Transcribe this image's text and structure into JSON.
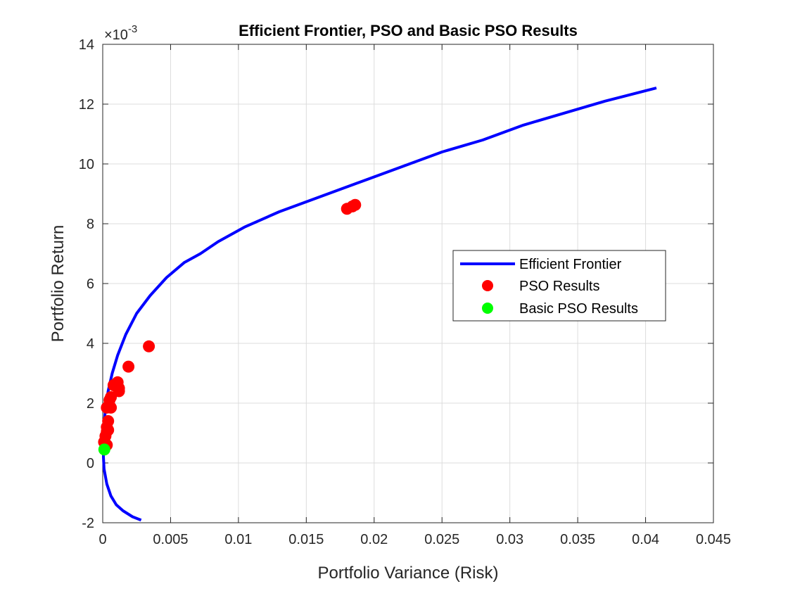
{
  "chart_data": {
    "type": "scatter",
    "title": "Efficient Frontier, PSO and Basic PSO Results",
    "xlabel": "Portfolio Variance (Risk)",
    "ylabel": "Portfolio Return",
    "xlim": [
      0,
      0.045
    ],
    "ylim": [
      -0.002,
      0.014
    ],
    "xticks": [
      0,
      0.005,
      0.01,
      0.015,
      0.02,
      0.025,
      0.03,
      0.035,
      0.04,
      0.045
    ],
    "xtick_labels": [
      "0",
      "0.005",
      "0.01",
      "0.015",
      "0.02",
      "0.025",
      "0.03",
      "0.035",
      "0.04",
      "0.045"
    ],
    "yticks": [
      -0.002,
      0,
      0.002,
      0.004,
      0.006,
      0.008,
      0.01,
      0.012,
      0.014
    ],
    "ytick_labels": [
      "-2",
      "0",
      "2",
      "4",
      "6",
      "8",
      "10",
      "12",
      "14"
    ],
    "y_exponent": {
      "base": "×10",
      "power": "-3"
    },
    "grid": true,
    "legend_position": "center-right",
    "series": [
      {
        "name": "Efficient Frontier",
        "kind": "line",
        "color": "#0000FF",
        "points": [
          [
            0.00283,
            -0.00191
          ],
          [
            0.0022,
            -0.0018
          ],
          [
            0.0015,
            -0.0016
          ],
          [
            0.001,
            -0.0014
          ],
          [
            0.0006,
            -0.0011
          ],
          [
            0.0003,
            -0.0007
          ],
          [
            0.0001,
            -0.0002
          ],
          [
            5e-05,
            0.0002
          ],
          [
            6e-05,
            0.0008
          ],
          [
            0.0001,
            0.0013
          ],
          [
            0.0002,
            0.0018
          ],
          [
            0.0004,
            0.0024
          ],
          [
            0.0007,
            0.003
          ],
          [
            0.0011,
            0.0036
          ],
          [
            0.0017,
            0.0043
          ],
          [
            0.0025,
            0.005
          ],
          [
            0.0035,
            0.0056
          ],
          [
            0.0047,
            0.0062
          ],
          [
            0.006,
            0.0067
          ],
          [
            0.0072,
            0.007
          ],
          [
            0.0085,
            0.0074
          ],
          [
            0.0105,
            0.0079
          ],
          [
            0.013,
            0.0084
          ],
          [
            0.016,
            0.0089
          ],
          [
            0.019,
            0.0094
          ],
          [
            0.022,
            0.0099
          ],
          [
            0.025,
            0.0104
          ],
          [
            0.028,
            0.0108
          ],
          [
            0.031,
            0.0113
          ],
          [
            0.034,
            0.0117
          ],
          [
            0.037,
            0.0121
          ],
          [
            0.0408,
            0.01254
          ]
        ]
      },
      {
        "name": "PSO Results",
        "kind": "scatter",
        "color": "#FF0000",
        "points": [
          [
            0.0001,
            0.0007
          ],
          [
            0.0002,
            0.0009
          ],
          [
            0.0003,
            0.00105
          ],
          [
            0.0003,
            0.0006
          ],
          [
            0.0003,
            0.0012
          ],
          [
            0.0004,
            0.0014
          ],
          [
            0.0004,
            0.0011
          ],
          [
            0.0003,
            0.00185
          ],
          [
            0.0006,
            0.00185
          ],
          [
            0.0005,
            0.0021
          ],
          [
            0.0006,
            0.0022
          ],
          [
            0.0008,
            0.0026
          ],
          [
            0.0011,
            0.0027
          ],
          [
            0.0012,
            0.0025
          ],
          [
            0.0012,
            0.0024
          ],
          [
            0.0019,
            0.00322
          ],
          [
            0.0034,
            0.0039
          ],
          [
            0.018,
            0.0085
          ],
          [
            0.0184,
            0.00858
          ],
          [
            0.0186,
            0.00863
          ]
        ]
      },
      {
        "name": "Basic PSO Results",
        "kind": "scatter",
        "color": "#00FF00",
        "points": [
          [
            0.00012,
            0.00045
          ]
        ]
      }
    ]
  }
}
